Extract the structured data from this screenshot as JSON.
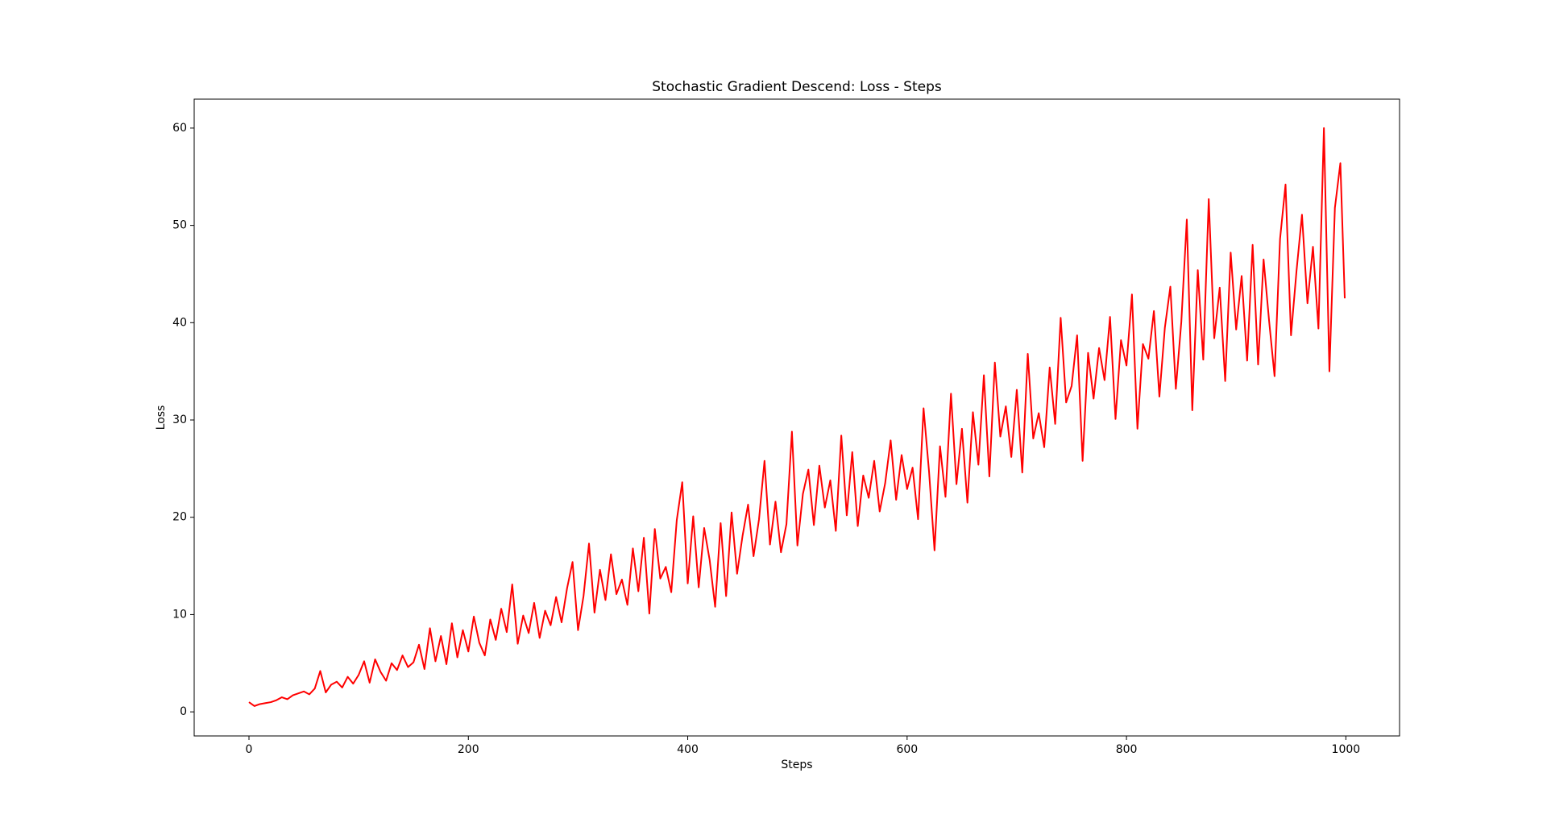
{
  "chart_data": {
    "type": "line",
    "title": "Stochastic Gradient Descend: Loss - Steps",
    "x_label": "Steps",
    "y_label": "Loss",
    "x": [
      0,
      5,
      10,
      15,
      20,
      25,
      30,
      35,
      40,
      45,
      50,
      55,
      60,
      65,
      70,
      75,
      80,
      85,
      90,
      95,
      100,
      105,
      110,
      115,
      120,
      125,
      130,
      135,
      140,
      145,
      150,
      155,
      160,
      165,
      170,
      175,
      180,
      185,
      190,
      195,
      200,
      205,
      210,
      215,
      220,
      225,
      230,
      235,
      240,
      245,
      250,
      255,
      260,
      265,
      270,
      275,
      280,
      285,
      290,
      295,
      300,
      305,
      310,
      315,
      320,
      325,
      330,
      335,
      340,
      345,
      350,
      355,
      360,
      365,
      370,
      375,
      380,
      385,
      390,
      395,
      400,
      405,
      410,
      415,
      420,
      425,
      430,
      435,
      440,
      445,
      450,
      455,
      460,
      465,
      470,
      475,
      480,
      485,
      490,
      495,
      500,
      505,
      510,
      515,
      520,
      525,
      530,
      535,
      540,
      545,
      550,
      555,
      560,
      565,
      570,
      575,
      580,
      585,
      590,
      595,
      600,
      605,
      610,
      615,
      620,
      625,
      630,
      635,
      640,
      645,
      650,
      655,
      660,
      665,
      670,
      675,
      680,
      685,
      690,
      695,
      700,
      705,
      710,
      715,
      720,
      725,
      730,
      735,
      740,
      745,
      750,
      755,
      760,
      765,
      770,
      775,
      780,
      785,
      790,
      795,
      800,
      805,
      810,
      815,
      820,
      825,
      830,
      835,
      840,
      845,
      850,
      855,
      860,
      865,
      870,
      875,
      880,
      885,
      890,
      895,
      900,
      905,
      910,
      915,
      920,
      925,
      930,
      935,
      940,
      945,
      950,
      955,
      960,
      965,
      970,
      975,
      980,
      985,
      990,
      995,
      999
    ],
    "series": [
      {
        "name": "Loss",
        "color": "#ff0000",
        "values": [
          1.0,
          0.6,
          0.8,
          0.9,
          1.0,
          1.2,
          1.5,
          1.3,
          1.7,
          1.9,
          2.1,
          1.8,
          2.4,
          4.2,
          2.0,
          2.8,
          3.1,
          2.5,
          3.6,
          2.9,
          3.8,
          5.2,
          3.0,
          5.4,
          4.1,
          3.2,
          5.0,
          4.3,
          5.8,
          4.6,
          5.1,
          6.9,
          4.4,
          8.6,
          5.2,
          7.8,
          4.9,
          9.1,
          5.6,
          8.4,
          6.2,
          9.8,
          7.1,
          5.8,
          9.5,
          7.4,
          10.6,
          8.2,
          13.1,
          7.0,
          9.9,
          8.1,
          11.2,
          7.6,
          10.4,
          8.9,
          11.8,
          9.2,
          12.7,
          15.4,
          8.4,
          11.9,
          17.3,
          10.2,
          14.6,
          11.5,
          16.2,
          12.1,
          13.6,
          11.0,
          16.8,
          12.4,
          17.9,
          10.1,
          18.8,
          13.7,
          14.9,
          12.3,
          19.7,
          23.6,
          13.2,
          20.1,
          12.8,
          18.9,
          15.6,
          10.8,
          19.4,
          11.9,
          20.5,
          14.2,
          18.1,
          21.3,
          16.0,
          19.8,
          25.8,
          17.2,
          21.6,
          16.4,
          19.3,
          28.8,
          17.1,
          22.4,
          24.9,
          19.2,
          25.3,
          21.0,
          23.8,
          18.6,
          28.4,
          20.2,
          26.7,
          19.1,
          24.3,
          22.0,
          25.8,
          20.6,
          23.5,
          27.9,
          21.8,
          26.4,
          22.9,
          25.1,
          19.8,
          31.2,
          24.7,
          16.6,
          27.3,
          22.1,
          32.7,
          23.4,
          29.1,
          21.5,
          30.8,
          25.4,
          34.6,
          24.2,
          35.9,
          28.3,
          31.4,
          26.2,
          33.1,
          24.6,
          36.8,
          28.1,
          30.7,
          27.2,
          35.4,
          29.6,
          40.5,
          31.8,
          33.5,
          38.7,
          25.8,
          36.9,
          32.2,
          37.4,
          34.1,
          40.6,
          30.1,
          38.2,
          35.6,
          42.9,
          29.1,
          37.8,
          36.3,
          41.2,
          32.4,
          39.5,
          43.7,
          33.2,
          40.1,
          50.6,
          31.0,
          45.4,
          36.2,
          52.7,
          38.4,
          43.6,
          34.0,
          47.2,
          39.3,
          44.8,
          36.1,
          48.0,
          35.7,
          46.5,
          40.2,
          34.5,
          48.6,
          54.2,
          38.7,
          45.3,
          51.1,
          42.0,
          47.8,
          39.4,
          60.0,
          35.0,
          51.8,
          56.4,
          42.5
        ]
      }
    ],
    "xlim": [
      -49.95,
      1048.95
    ],
    "ylim": [
      -2.475,
      62.975
    ],
    "xticks": [
      0,
      200,
      400,
      600,
      800,
      1000
    ],
    "yticks": [
      0,
      10,
      20,
      30,
      40,
      50,
      60
    ]
  }
}
